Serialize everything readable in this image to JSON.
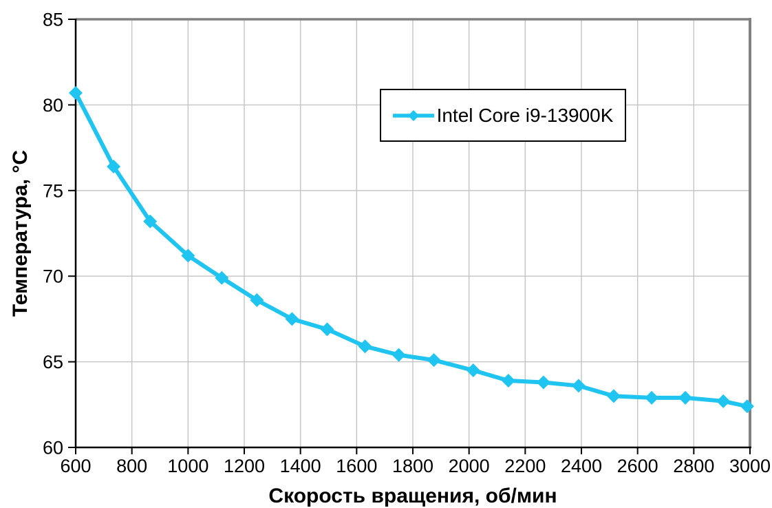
{
  "chart_data": {
    "type": "line",
    "title": "",
    "xlabel": "Скорость вращения, об/мин",
    "ylabel": "Температура, °C",
    "xlim": [
      600,
      3000
    ],
    "ylim": [
      60,
      85
    ],
    "xticks": [
      600,
      800,
      1000,
      1200,
      1400,
      1600,
      1800,
      2000,
      2200,
      2400,
      2600,
      2800,
      3000
    ],
    "yticks": [
      60,
      65,
      70,
      75,
      80,
      85
    ],
    "grid": true,
    "legend_position": "top-center-inside",
    "series": [
      {
        "name": "Intel Core i9-13900K",
        "color": "#1FC4F0",
        "marker": "diamond",
        "x": [
          600,
          735,
          865,
          1000,
          1120,
          1245,
          1370,
          1495,
          1630,
          1750,
          1875,
          2015,
          2140,
          2265,
          2390,
          2515,
          2650,
          2770,
          2905,
          2990
        ],
        "y": [
          80.7,
          76.4,
          73.2,
          71.2,
          69.9,
          68.6,
          67.5,
          66.9,
          65.9,
          65.4,
          65.1,
          64.5,
          63.9,
          63.8,
          63.6,
          63.0,
          62.9,
          62.9,
          62.7,
          62.4
        ]
      }
    ]
  },
  "colors": {
    "series": "#1FC4F0",
    "gridline": "#c3c3c3",
    "plot_border": "#808080",
    "axis": "#000000",
    "tick_label": "#000000",
    "background": "#ffffff"
  }
}
